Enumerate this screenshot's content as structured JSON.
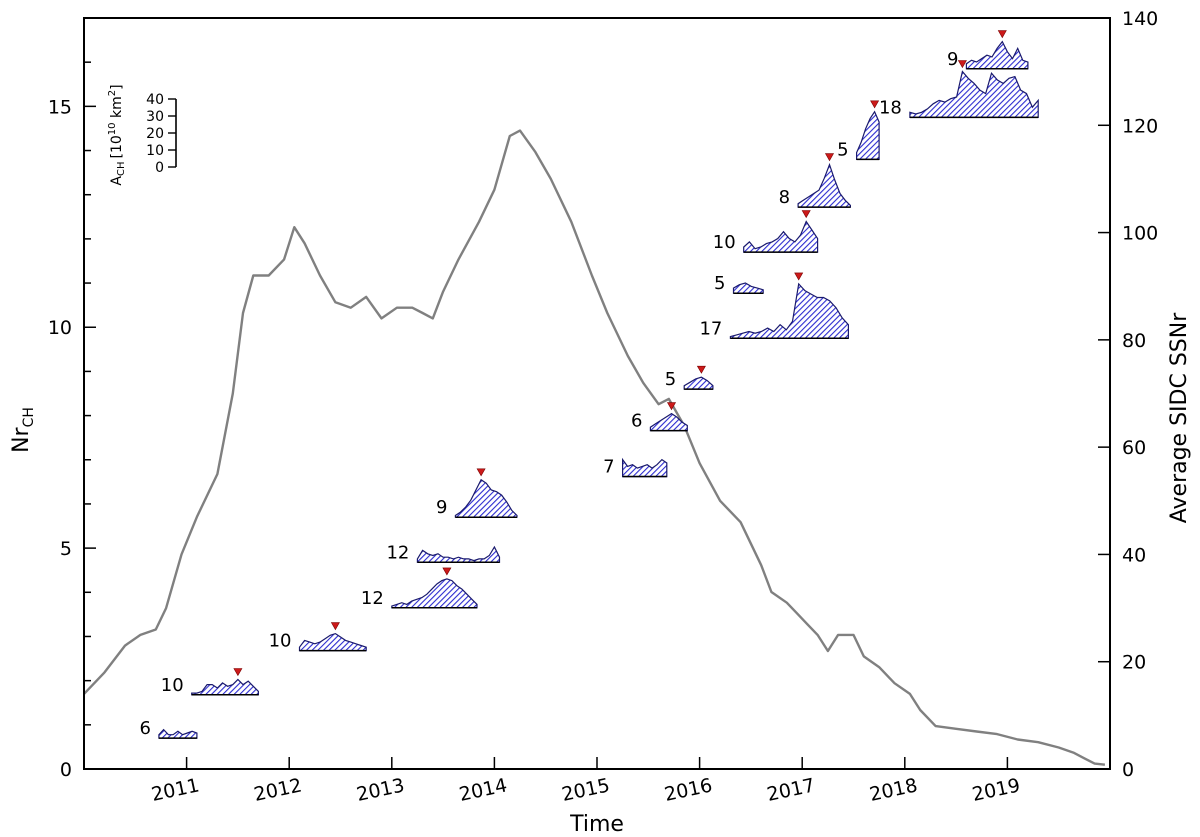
{
  "chart_data": {
    "type": "line",
    "xlabel": "Time",
    "ylabel_left_main": "Nr",
    "ylabel_left_sub": "CH",
    "ylabel_right": "Average SIDC SSNr",
    "xlim": [
      2010.0,
      2020.0
    ],
    "ylim_left": [
      0,
      17
    ],
    "ylim_right": [
      0,
      140
    ],
    "x_ticks": [
      2011,
      2012,
      2013,
      2014,
      2015,
      2016,
      2017,
      2018,
      2019
    ],
    "y_left_ticks": [
      0,
      5,
      10,
      15
    ],
    "y_right_ticks": [
      0,
      20,
      40,
      60,
      80,
      100,
      120,
      140
    ],
    "grid": false,
    "ssn_series": {
      "name": "Average SIDC SSNr",
      "color": "#808080",
      "points": [
        [
          2010.0,
          14
        ],
        [
          2010.2,
          18
        ],
        [
          2010.4,
          23
        ],
        [
          2010.55,
          25
        ],
        [
          2010.7,
          26
        ],
        [
          2010.8,
          30
        ],
        [
          2010.95,
          40
        ],
        [
          2011.1,
          47
        ],
        [
          2011.3,
          55
        ],
        [
          2011.45,
          70
        ],
        [
          2011.55,
          85
        ],
        [
          2011.65,
          92
        ],
        [
          2011.8,
          92
        ],
        [
          2011.95,
          95
        ],
        [
          2012.05,
          101
        ],
        [
          2012.15,
          98
        ],
        [
          2012.3,
          92
        ],
        [
          2012.45,
          87
        ],
        [
          2012.6,
          86
        ],
        [
          2012.75,
          88
        ],
        [
          2012.9,
          84
        ],
        [
          2013.05,
          86
        ],
        [
          2013.2,
          86
        ],
        [
          2013.3,
          85
        ],
        [
          2013.4,
          84
        ],
        [
          2013.5,
          89
        ],
        [
          2013.65,
          95
        ],
        [
          2013.85,
          102
        ],
        [
          2014.0,
          108
        ],
        [
          2014.15,
          118
        ],
        [
          2014.25,
          119
        ],
        [
          2014.4,
          115
        ],
        [
          2014.55,
          110
        ],
        [
          2014.75,
          102
        ],
        [
          2014.95,
          92
        ],
        [
          2015.1,
          85
        ],
        [
          2015.3,
          77
        ],
        [
          2015.45,
          72
        ],
        [
          2015.6,
          68
        ],
        [
          2015.7,
          69
        ],
        [
          2015.85,
          64
        ],
        [
          2016.0,
          57
        ],
        [
          2016.2,
          50
        ],
        [
          2016.4,
          46
        ],
        [
          2016.5,
          42
        ],
        [
          2016.6,
          38
        ],
        [
          2016.7,
          33
        ],
        [
          2016.85,
          31
        ],
        [
          2016.95,
          29
        ],
        [
          2017.05,
          27
        ],
        [
          2017.15,
          25
        ],
        [
          2017.25,
          22
        ],
        [
          2017.35,
          25
        ],
        [
          2017.5,
          25
        ],
        [
          2017.6,
          21
        ],
        [
          2017.75,
          19
        ],
        [
          2017.9,
          16
        ],
        [
          2018.05,
          14
        ],
        [
          2018.15,
          11
        ],
        [
          2018.3,
          8
        ],
        [
          2018.5,
          7.5
        ],
        [
          2018.7,
          7
        ],
        [
          2018.9,
          6.5
        ],
        [
          2019.1,
          5.5
        ],
        [
          2019.3,
          5
        ],
        [
          2019.5,
          4
        ],
        [
          2019.65,
          3
        ],
        [
          2019.75,
          2
        ],
        [
          2019.85,
          1
        ],
        [
          2019.95,
          0.8
        ]
      ]
    },
    "ch_area_scale": {
      "label_main": "A",
      "label_sub": "CH",
      "label_unit_pre": "[10",
      "label_exp1": "10",
      "label_unit_mid": " km",
      "label_exp2": "2",
      "label_unit_post": "]",
      "ticks": [
        0,
        10,
        20,
        30,
        40
      ],
      "max": 40
    },
    "ch_glyphs": [
      {
        "count": "6",
        "x_start": 2010.73,
        "x_end": 2011.1,
        "level": 0.7,
        "max_idx": null,
        "areas": [
          2,
          5,
          2,
          2,
          4,
          2,
          3,
          4,
          3
        ]
      },
      {
        "count": "10",
        "x_start": 2011.05,
        "x_end": 2011.7,
        "level": 1.68,
        "max_idx": 9,
        "areas": [
          1,
          1,
          2,
          6,
          6,
          4,
          7,
          5,
          6,
          9,
          6,
          8,
          5,
          2
        ]
      },
      {
        "count": "10",
        "x_start": 2012.1,
        "x_end": 2012.75,
        "level": 2.68,
        "max_idx": 7,
        "areas": [
          2,
          6,
          5,
          4,
          5,
          7,
          9,
          10,
          8,
          6,
          5,
          4,
          3,
          2
        ]
      },
      {
        "count": "12",
        "x_start": 2013.0,
        "x_end": 2013.83,
        "level": 3.65,
        "max_idx": 11,
        "areas": [
          1,
          2,
          3,
          2,
          4,
          5,
          6,
          8,
          11,
          14,
          16,
          17,
          16,
          13,
          11,
          8,
          5,
          2
        ]
      },
      {
        "count": "12",
        "x_start": 2013.25,
        "x_end": 2014.05,
        "level": 4.68,
        "max_idx": null,
        "areas": [
          2,
          7,
          5,
          4,
          5,
          3,
          3,
          2,
          3,
          2,
          2,
          1,
          2,
          2,
          4,
          9,
          3
        ]
      },
      {
        "count": "9",
        "x_start": 2013.62,
        "x_end": 2014.22,
        "level": 5.7,
        "max_idx": 5,
        "areas": [
          1,
          3,
          6,
          10,
          16,
          22,
          20,
          16,
          15,
          13,
          9,
          4,
          1
        ]
      },
      {
        "count": "7",
        "x_start": 2015.25,
        "x_end": 2015.68,
        "level": 6.62,
        "max_idx": null,
        "areas": [
          10,
          6,
          7,
          5,
          6,
          7,
          5,
          7,
          10,
          8
        ]
      },
      {
        "count": "6",
        "x_start": 2015.52,
        "x_end": 2015.88,
        "level": 7.66,
        "max_idx": 4,
        "areas": [
          2,
          4,
          6,
          8,
          10,
          8,
          5,
          3
        ]
      },
      {
        "count": "5",
        "x_start": 2015.85,
        "x_end": 2016.13,
        "level": 8.6,
        "max_idx": 3,
        "areas": [
          2,
          4,
          6,
          7,
          5,
          2
        ]
      },
      {
        "count": "17",
        "x_start": 2016.3,
        "x_end": 2017.45,
        "level": 9.75,
        "max_idx": 11,
        "areas": [
          1,
          2,
          3,
          4,
          3,
          4,
          6,
          4,
          8,
          5,
          10,
          32,
          28,
          26,
          24,
          24,
          22,
          18,
          12,
          8
        ]
      },
      {
        "count": "5",
        "x_start": 2016.33,
        "x_end": 2016.62,
        "level": 10.77,
        "max_idx": null,
        "areas": [
          3,
          5,
          6,
          4,
          3,
          2
        ]
      },
      {
        "count": "10",
        "x_start": 2016.43,
        "x_end": 2017.15,
        "level": 11.7,
        "max_idx": 11,
        "areas": [
          3,
          6,
          2,
          3,
          5,
          6,
          8,
          12,
          8,
          6,
          10,
          18,
          13,
          8
        ]
      },
      {
        "count": "8",
        "x_start": 2016.96,
        "x_end": 2017.47,
        "level": 12.72,
        "max_idx": 6,
        "areas": [
          2,
          4,
          6,
          8,
          10,
          17,
          25,
          16,
          8,
          4,
          1
        ]
      },
      {
        "count": "5",
        "x_start": 2017.53,
        "x_end": 2017.75,
        "level": 13.8,
        "max_idx": 4,
        "areas": [
          4,
          10,
          18,
          24,
          28,
          22
        ]
      },
      {
        "count": "18",
        "x_start": 2018.05,
        "x_end": 2019.3,
        "level": 14.75,
        "max_idx": 9,
        "areas": [
          3,
          2,
          3,
          5,
          8,
          10,
          9,
          11,
          12,
          27,
          23,
          20,
          16,
          14,
          26,
          22,
          20,
          23,
          24,
          16,
          14,
          6,
          10
        ]
      },
      {
        "count": "9",
        "x_start": 2018.6,
        "x_end": 2019.2,
        "level": 15.85,
        "max_idx": 7,
        "areas": [
          3,
          5,
          4,
          6,
          8,
          7,
          12,
          16,
          10,
          6,
          12,
          5,
          4
        ]
      }
    ],
    "glyph_fill": "#3b3bc9",
    "marker_color": "#cc1a1a"
  }
}
